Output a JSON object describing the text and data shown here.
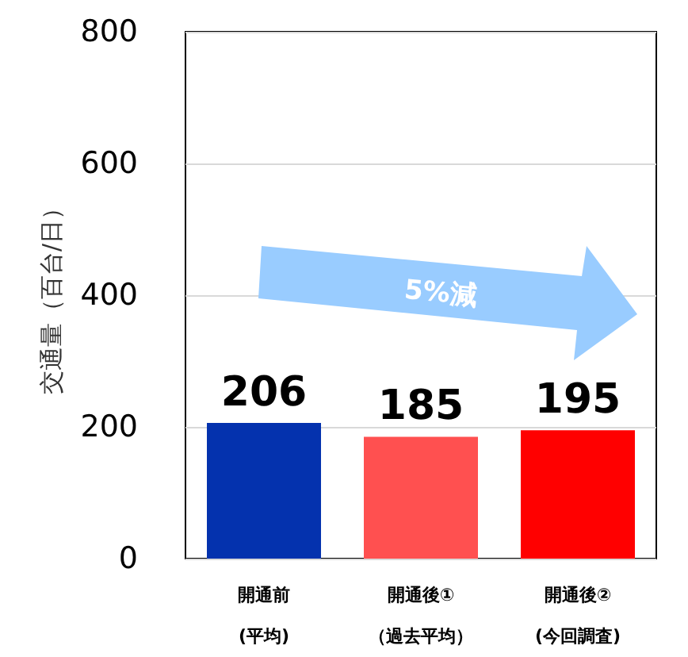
{
  "chart_data": {
    "type": "bar",
    "ylabel": "交通量（百台/日）",
    "categories": [
      "開通前\n(平均)",
      "開通後①\n（過去平均）",
      "開通後②\n(今回調査)"
    ],
    "values": [
      206,
      185,
      195
    ],
    "colors": [
      "#0432ae",
      "#ff5050",
      "#ff0000"
    ],
    "ylim": [
      0,
      800
    ],
    "yticks": [
      0,
      200,
      400,
      600,
      800
    ],
    "grid": "y",
    "data_labels": true,
    "annotations": [
      "5%減"
    ]
  }
}
